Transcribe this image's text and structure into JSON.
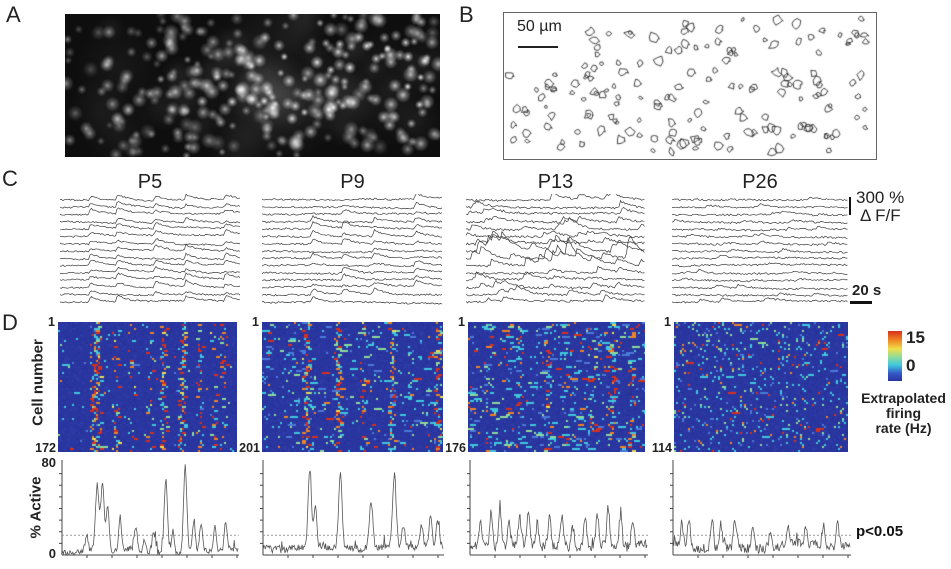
{
  "figure": {
    "panel_a": {
      "label": "A"
    },
    "panel_b": {
      "label": "B",
      "scale_text": "50 µm"
    },
    "panel_c": {
      "label": "C",
      "titles": [
        "P5",
        "P9",
        "P13",
        "P26"
      ],
      "y_scale_value": "300 %",
      "y_scale_unit": "Δ F/F",
      "x_scale": "20 s"
    },
    "panel_d": {
      "label": "D",
      "y_axis_label": "Cell number",
      "heatmaps": [
        {
          "first_cell": "1",
          "last_cell": "172"
        },
        {
          "first_cell": "1",
          "last_cell": "201"
        },
        {
          "first_cell": "1",
          "last_cell": "176"
        },
        {
          "first_cell": "1",
          "last_cell": "114"
        }
      ],
      "colorbar": {
        "max_label": "15",
        "min_label": "0",
        "caption_line1": "Extrapolated",
        "caption_line2": "firing",
        "caption_line3": "rate (Hz)"
      },
      "active_plots": {
        "y_label": "% Active",
        "y_max": "80",
        "y_min": "0",
        "significance_label": "p<0.05"
      }
    }
  },
  "colors": {
    "heatmap_bg": "#2a36a0",
    "jet_high": "#d8301c",
    "jet_low": "#2a36a0",
    "trace_line": "#3c3c3c",
    "active_line": "#555555",
    "threshold_line": "#999999"
  },
  "chart_data": {
    "calcium_traces": [
      {
        "title": "P5",
        "n_traces": 15,
        "sync": true,
        "event_times_frac": [
          0.17,
          0.32,
          0.53,
          0.7,
          0.92
        ],
        "participation": 0.85,
        "amp_range": [
          3.0,
          6.5
        ],
        "noise": 0.8,
        "y_scale": "300 % dF/F",
        "x_scale": "20 s"
      },
      {
        "title": "P9",
        "n_traces": 15,
        "sync": true,
        "event_times_frac": [
          0.28,
          0.45,
          0.62,
          0.85
        ],
        "participation": 0.55,
        "amp_range": [
          2.5,
          7.0
        ],
        "noise": 0.9,
        "y_scale": "300 % dF/F",
        "x_scale": "20 s"
      },
      {
        "title": "P13",
        "n_traces": 15,
        "sync": false,
        "event_rate": 5,
        "amp_range": [
          2.5,
          6.0
        ],
        "heavy_rows": [
          7,
          8,
          9
        ],
        "heavy_factor": 1.9,
        "noise": 1.1,
        "y_scale": "300 % dF/F",
        "x_scale": "20 s"
      },
      {
        "title": "P26",
        "n_traces": 15,
        "sync": false,
        "event_rate": 2,
        "amp_range": [
          1.5,
          3.5
        ],
        "heavy_rows": [],
        "heavy_factor": 1,
        "noise": 0.9,
        "y_scale": "300 % dF/F",
        "x_scale": "20 s"
      }
    ],
    "heatmaps": [
      {
        "type": "heatmap",
        "title": "P5",
        "n_cells": 172,
        "value_range_hz": [
          0,
          15
        ],
        "colormap": "jet",
        "bg_density": 0.018,
        "streak_prob": 0.1,
        "events": [
          [
            0.2,
            0.8
          ],
          [
            0.23,
            0.8
          ],
          [
            0.33,
            0.5
          ],
          [
            0.42,
            0.3
          ],
          [
            0.52,
            0.35
          ],
          [
            0.59,
            0.8
          ],
          [
            0.7,
            0.9
          ],
          [
            0.79,
            0.4
          ],
          [
            0.87,
            0.35
          ],
          [
            0.93,
            0.3
          ]
        ]
      },
      {
        "type": "heatmap",
        "title": "P9",
        "n_cells": 201,
        "value_range_hz": [
          0,
          15
        ],
        "colormap": "jet",
        "bg_density": 0.06,
        "streak_prob": 0.35,
        "events": [
          [
            0.25,
            0.8
          ],
          [
            0.42,
            0.85
          ],
          [
            0.57,
            0.4
          ],
          [
            0.72,
            0.8
          ],
          [
            0.97,
            0.6
          ]
        ]
      },
      {
        "type": "heatmap",
        "title": "P13",
        "n_cells": 176,
        "value_range_hz": [
          0,
          15
        ],
        "colormap": "jet",
        "bg_density": 0.085,
        "streak_prob": 0.45,
        "events": [
          [
            0.12,
            0.3
          ],
          [
            0.3,
            0.35
          ],
          [
            0.45,
            0.3
          ],
          [
            0.57,
            0.25
          ],
          [
            0.7,
            0.3
          ],
          [
            0.82,
            0.4
          ],
          [
            0.93,
            0.3
          ]
        ]
      },
      {
        "type": "heatmap",
        "title": "P26",
        "n_cells": 114,
        "value_range_hz": [
          0,
          15
        ],
        "colormap": "jet",
        "bg_density": 0.105,
        "streak_prob": 0.08,
        "events": []
      }
    ],
    "active_lines": [
      {
        "type": "line",
        "title": "P5 % Active",
        "ylabel": "% Active",
        "ylim": [
          0,
          80
        ],
        "threshold_pct": 17,
        "noise_mean": 3,
        "noise_amp": 2.5,
        "peaks": [
          [
            0.14,
            12
          ],
          [
            0.2,
            55
          ],
          [
            0.23,
            57
          ],
          [
            0.26,
            38
          ],
          [
            0.33,
            30
          ],
          [
            0.42,
            22
          ],
          [
            0.47,
            12
          ],
          [
            0.52,
            15
          ],
          [
            0.59,
            65
          ],
          [
            0.63,
            20
          ],
          [
            0.7,
            72
          ],
          [
            0.75,
            28
          ],
          [
            0.79,
            25
          ],
          [
            0.87,
            22
          ],
          [
            0.93,
            25
          ]
        ]
      },
      {
        "type": "line",
        "title": "P9 % Active",
        "ylabel": "% Active",
        "ylim": [
          0,
          80
        ],
        "threshold_pct": 17,
        "noise_mean": 7,
        "noise_amp": 3,
        "peaks": [
          [
            0.26,
            65
          ],
          [
            0.29,
            35
          ],
          [
            0.43,
            62
          ],
          [
            0.6,
            42
          ],
          [
            0.73,
            62
          ],
          [
            0.78,
            18
          ],
          [
            0.88,
            20
          ],
          [
            0.93,
            26
          ],
          [
            0.97,
            22
          ]
        ]
      },
      {
        "type": "line",
        "title": "P13 % Active",
        "ylabel": "% Active",
        "ylim": [
          0,
          80
        ],
        "threshold_pct": 17,
        "noise_mean": 8,
        "noise_amp": 4,
        "peaks": [
          [
            0.06,
            18
          ],
          [
            0.12,
            30
          ],
          [
            0.17,
            33
          ],
          [
            0.22,
            20
          ],
          [
            0.28,
            25
          ],
          [
            0.33,
            30
          ],
          [
            0.38,
            20
          ],
          [
            0.45,
            25
          ],
          [
            0.52,
            27
          ],
          [
            0.58,
            18
          ],
          [
            0.65,
            26
          ],
          [
            0.72,
            28
          ],
          [
            0.78,
            34
          ],
          [
            0.85,
            26
          ],
          [
            0.92,
            22
          ]
        ]
      },
      {
        "type": "line",
        "title": "P26 % Active",
        "ylabel": "% Active",
        "ylim": [
          0,
          80
        ],
        "threshold_pct": 17,
        "noise_mean": 8,
        "noise_amp": 4,
        "peaks": [
          [
            0.05,
            20
          ],
          [
            0.09,
            23
          ],
          [
            0.22,
            26
          ],
          [
            0.27,
            20
          ],
          [
            0.35,
            24
          ],
          [
            0.45,
            16
          ],
          [
            0.55,
            15
          ],
          [
            0.65,
            16
          ],
          [
            0.75,
            14
          ],
          [
            0.85,
            18
          ],
          [
            0.93,
            20
          ]
        ]
      }
    ]
  }
}
